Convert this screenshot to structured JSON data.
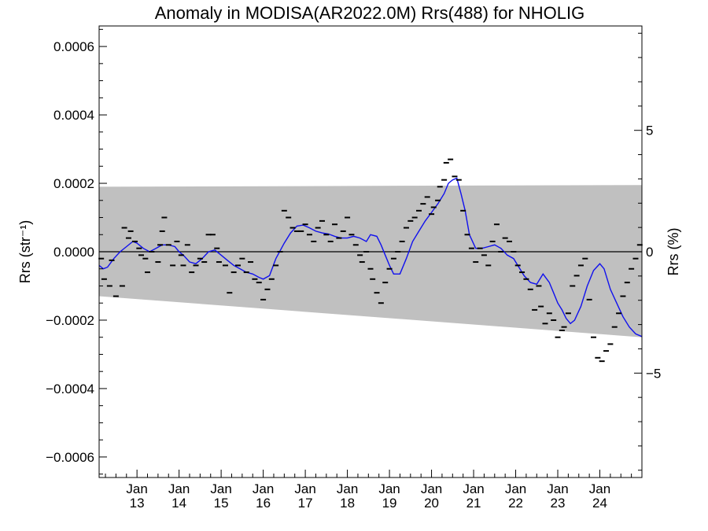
{
  "chart_data": {
    "type": "line",
    "title": "Anomaly in MODISA(AR2022.0M) Rrs(488) for NHOLIG",
    "ylabel_left": "Rrs (str⁻¹)",
    "ylabel_right": "Rrs (%)",
    "xlim": [
      2012.1,
      2025.0
    ],
    "ylim": [
      -0.00066,
      0.00066
    ],
    "ylim_right": [
      -9.3,
      9.3
    ],
    "y_ticks": [
      {
        "value": 0.0006,
        "label": "0.0006"
      },
      {
        "value": 0.0004,
        "label": "0.0004"
      },
      {
        "value": 0.0002,
        "label": "0.0002"
      },
      {
        "value": 0.0,
        "label": "0.0000"
      },
      {
        "value": -0.0002,
        "label": "−0.0002"
      },
      {
        "value": -0.0004,
        "label": "−0.0004"
      },
      {
        "value": -0.0006,
        "label": "−0.0006"
      }
    ],
    "y_ticks_right": [
      {
        "value": 5,
        "label": "5"
      },
      {
        "value": 0,
        "label": "0"
      },
      {
        "value": -5,
        "label": "−5"
      }
    ],
    "x_ticks": [
      {
        "value": 2013,
        "top": "Jan",
        "bottom": "13"
      },
      {
        "value": 2014,
        "top": "Jan",
        "bottom": "14"
      },
      {
        "value": 2015,
        "top": "Jan",
        "bottom": "15"
      },
      {
        "value": 2016,
        "top": "Jan",
        "bottom": "16"
      },
      {
        "value": 2017,
        "top": "Jan",
        "bottom": "17"
      },
      {
        "value": 2018,
        "top": "Jan",
        "bottom": "18"
      },
      {
        "value": 2019,
        "top": "Jan",
        "bottom": "19"
      },
      {
        "value": 2020,
        "top": "Jan",
        "bottom": "20"
      },
      {
        "value": 2021,
        "top": "Jan",
        "bottom": "21"
      },
      {
        "value": 2022,
        "top": "Jan",
        "bottom": "22"
      },
      {
        "value": 2023,
        "top": "Jan",
        "bottom": "23"
      },
      {
        "value": 2024,
        "top": "Jan",
        "bottom": "24"
      }
    ],
    "band": {
      "upper": [
        [
          2012.1,
          0.00019
        ],
        [
          2025.0,
          0.000195
        ]
      ],
      "lower": [
        [
          2012.1,
          -0.00013
        ],
        [
          2025.0,
          -0.00025
        ]
      ],
      "color": "#c0c0c0"
    },
    "reference_line": 0.0,
    "series": [
      {
        "type": "line",
        "color": "#1010ee",
        "x": [
          2012.1,
          2012.2,
          2012.3,
          2012.45,
          2012.6,
          2012.75,
          2012.9,
          2013.0,
          2013.15,
          2013.3,
          2013.45,
          2013.6,
          2013.75,
          2013.9,
          2014.0,
          2014.1,
          2014.25,
          2014.4,
          2014.55,
          2014.7,
          2014.85,
          2015.0,
          2015.15,
          2015.3,
          2015.45,
          2015.6,
          2015.75,
          2015.9,
          2016.0,
          2016.15,
          2016.3,
          2016.5,
          2016.65,
          2016.8,
          2016.95,
          2017.1,
          2017.25,
          2017.4,
          2017.55,
          2017.7,
          2017.85,
          2018.0,
          2018.15,
          2018.3,
          2018.45,
          2018.55,
          2018.7,
          2018.8,
          2018.9,
          2019.0,
          2019.1,
          2019.25,
          2019.4,
          2019.55,
          2019.7,
          2019.85,
          2020.0,
          2020.15,
          2020.3,
          2020.4,
          2020.5,
          2020.6,
          2020.7,
          2020.8,
          2020.9,
          2021.05,
          2021.2,
          2021.35,
          2021.5,
          2021.65,
          2021.8,
          2021.95,
          2022.05,
          2022.2,
          2022.35,
          2022.5,
          2022.65,
          2022.8,
          2022.9,
          2023.0,
          2023.1,
          2023.2,
          2023.3,
          2023.4,
          2023.55,
          2023.7,
          2023.85,
          2024.0,
          2024.1,
          2024.25,
          2024.4,
          2024.55,
          2024.7,
          2024.85,
          2025.0
        ],
        "y": [
          -4e-05,
          -5e-05,
          -4.5e-05,
          -2e-05,
          0.0,
          1.5e-05,
          3e-05,
          2.5e-05,
          1e-05,
          0.0,
          1e-05,
          2e-05,
          2e-05,
          1.5e-05,
          0.0,
          -1e-05,
          -3e-05,
          -3.5e-05,
          -2e-05,
          0.0,
          5e-06,
          -1e-05,
          -2.5e-05,
          -4e-05,
          -5e-05,
          -6e-05,
          -6.5e-05,
          -7.5e-05,
          -8e-05,
          -7e-05,
          -2e-05,
          2.5e-05,
          5.5e-05,
          7.5e-05,
          7.8e-05,
          7e-05,
          6e-05,
          5.5e-05,
          5.2e-05,
          4.5e-05,
          4e-05,
          4e-05,
          4.5e-05,
          4e-05,
          3e-05,
          5e-05,
          4.5e-05,
          2e-05,
          -1e-05,
          -4e-05,
          -6.5e-05,
          -6.5e-05,
          -2e-05,
          3e-05,
          6e-05,
          9e-05,
          0.000115,
          0.00014,
          0.00017,
          0.0002,
          0.00021,
          0.000215,
          0.00017,
          0.00012,
          5e-05,
          1e-05,
          1e-05,
          1.5e-05,
          2e-05,
          1e-05,
          -1e-05,
          -2e-05,
          -4e-05,
          -7e-05,
          -9e-05,
          -9.5e-05,
          -6.5e-05,
          -9e-05,
          -0.00012,
          -0.00015,
          -0.00017,
          -0.000195,
          -0.00021,
          -0.0002,
          -0.00016,
          -0.0001,
          -5.5e-05,
          -3.5e-05,
          -5e-05,
          -0.00011,
          -0.00015,
          -0.00019,
          -0.00022,
          -0.00024,
          -0.000248
        ]
      },
      {
        "type": "scatter",
        "marker": "dash",
        "color": "#000000",
        "x": [
          2012.15,
          2012.22,
          2012.35,
          2012.4,
          2012.5,
          2012.65,
          2012.7,
          2012.8,
          2012.85,
          2012.95,
          2013.05,
          2013.1,
          2013.2,
          2013.25,
          2013.35,
          2013.5,
          2013.55,
          2013.6,
          2013.65,
          2013.75,
          2013.85,
          2013.95,
          2014.05,
          2014.1,
          2014.2,
          2014.3,
          2014.4,
          2014.5,
          2014.6,
          2014.7,
          2014.8,
          2014.9,
          2014.95,
          2015.1,
          2015.2,
          2015.3,
          2015.4,
          2015.5,
          2015.6,
          2015.7,
          2015.8,
          2015.9,
          2016.0,
          2016.1,
          2016.2,
          2016.3,
          2016.4,
          2016.5,
          2016.6,
          2016.7,
          2016.8,
          2016.9,
          2017.0,
          2017.1,
          2017.2,
          2017.3,
          2017.4,
          2017.5,
          2017.6,
          2017.7,
          2017.8,
          2017.9,
          2018.0,
          2018.1,
          2018.2,
          2018.3,
          2018.35,
          2018.45,
          2018.55,
          2018.6,
          2018.7,
          2018.8,
          2018.9,
          2019.0,
          2019.1,
          2019.2,
          2019.3,
          2019.4,
          2019.5,
          2019.6,
          2019.7,
          2019.8,
          2019.9,
          2020.0,
          2020.05,
          2020.15,
          2020.2,
          2020.3,
          2020.35,
          2020.45,
          2020.55,
          2020.65,
          2020.75,
          2020.85,
          2020.95,
          2021.05,
          2021.15,
          2021.25,
          2021.35,
          2021.45,
          2021.55,
          2021.65,
          2021.75,
          2021.85,
          2021.95,
          2022.05,
          2022.15,
          2022.25,
          2022.35,
          2022.45,
          2022.55,
          2022.6,
          2022.7,
          2022.8,
          2022.9,
          2023.0,
          2023.1,
          2023.15,
          2023.25,
          2023.35,
          2023.45,
          2023.55,
          2023.65,
          2023.75,
          2023.85,
          2023.95,
          2024.05,
          2024.15,
          2024.25,
          2024.35,
          2024.45,
          2024.55,
          2024.65,
          2024.75,
          2024.85,
          2024.95
        ],
        "y": [
          -2e-05,
          -8e-05,
          -0.0001,
          -2.5e-05,
          -0.00013,
          -0.0001,
          7e-05,
          4e-05,
          6e-05,
          3e-05,
          1e-05,
          -1e-05,
          -2e-05,
          -6e-05,
          0.0,
          -3e-05,
          2e-05,
          6e-05,
          0.0001,
          2e-05,
          -4e-05,
          3e-05,
          -1e-05,
          -4e-05,
          2e-05,
          -6e-05,
          -4e-05,
          -2e-05,
          -3e-05,
          5e-05,
          5e-05,
          1e-05,
          -3e-05,
          -4e-05,
          -0.00012,
          -6e-05,
          -4e-05,
          -2e-05,
          -6e-05,
          -3e-05,
          -8e-05,
          -9e-05,
          -0.00014,
          -0.00011,
          -8e-05,
          -4e-05,
          0.0,
          0.00012,
          0.0001,
          7e-05,
          6e-05,
          6e-05,
          8e-05,
          5e-05,
          3e-05,
          7e-05,
          9e-05,
          5e-05,
          3e-05,
          8e-05,
          4e-05,
          6e-05,
          0.0001,
          5e-05,
          2e-05,
          -1e-05,
          -3e-05,
          0.0,
          -5e-05,
          -8e-05,
          -0.00012,
          -0.00015,
          -9e-05,
          -5e-05,
          -2e-05,
          0.0,
          3e-05,
          7e-05,
          9e-05,
          0.0001,
          0.00012,
          0.00014,
          0.00016,
          0.00011,
          0.00013,
          0.00015,
          0.00019,
          0.00021,
          0.00026,
          0.00027,
          0.00022,
          0.00021,
          0.00012,
          5e-05,
          1e-05,
          -3e-05,
          1e-05,
          -1e-05,
          -4e-05,
          3e-05,
          8e-05,
          0.0,
          4e-05,
          3e-05,
          0.0,
          -4e-05,
          -6e-05,
          -8e-05,
          -0.00011,
          -0.00017,
          -0.0001,
          -0.00016,
          -0.00021,
          -0.00018,
          -0.0002,
          -0.00025,
          -0.00023,
          -0.00022,
          -0.00018,
          -0.0001,
          -7e-05,
          -4e-05,
          -2e-05,
          -0.00014,
          -0.00025,
          -0.00031,
          -0.00032,
          -0.00029,
          -0.00027,
          -0.00022,
          -0.00018,
          -0.00013,
          -9e-05,
          -5e-05,
          -2e-05,
          2e-05
        ]
      }
    ]
  }
}
